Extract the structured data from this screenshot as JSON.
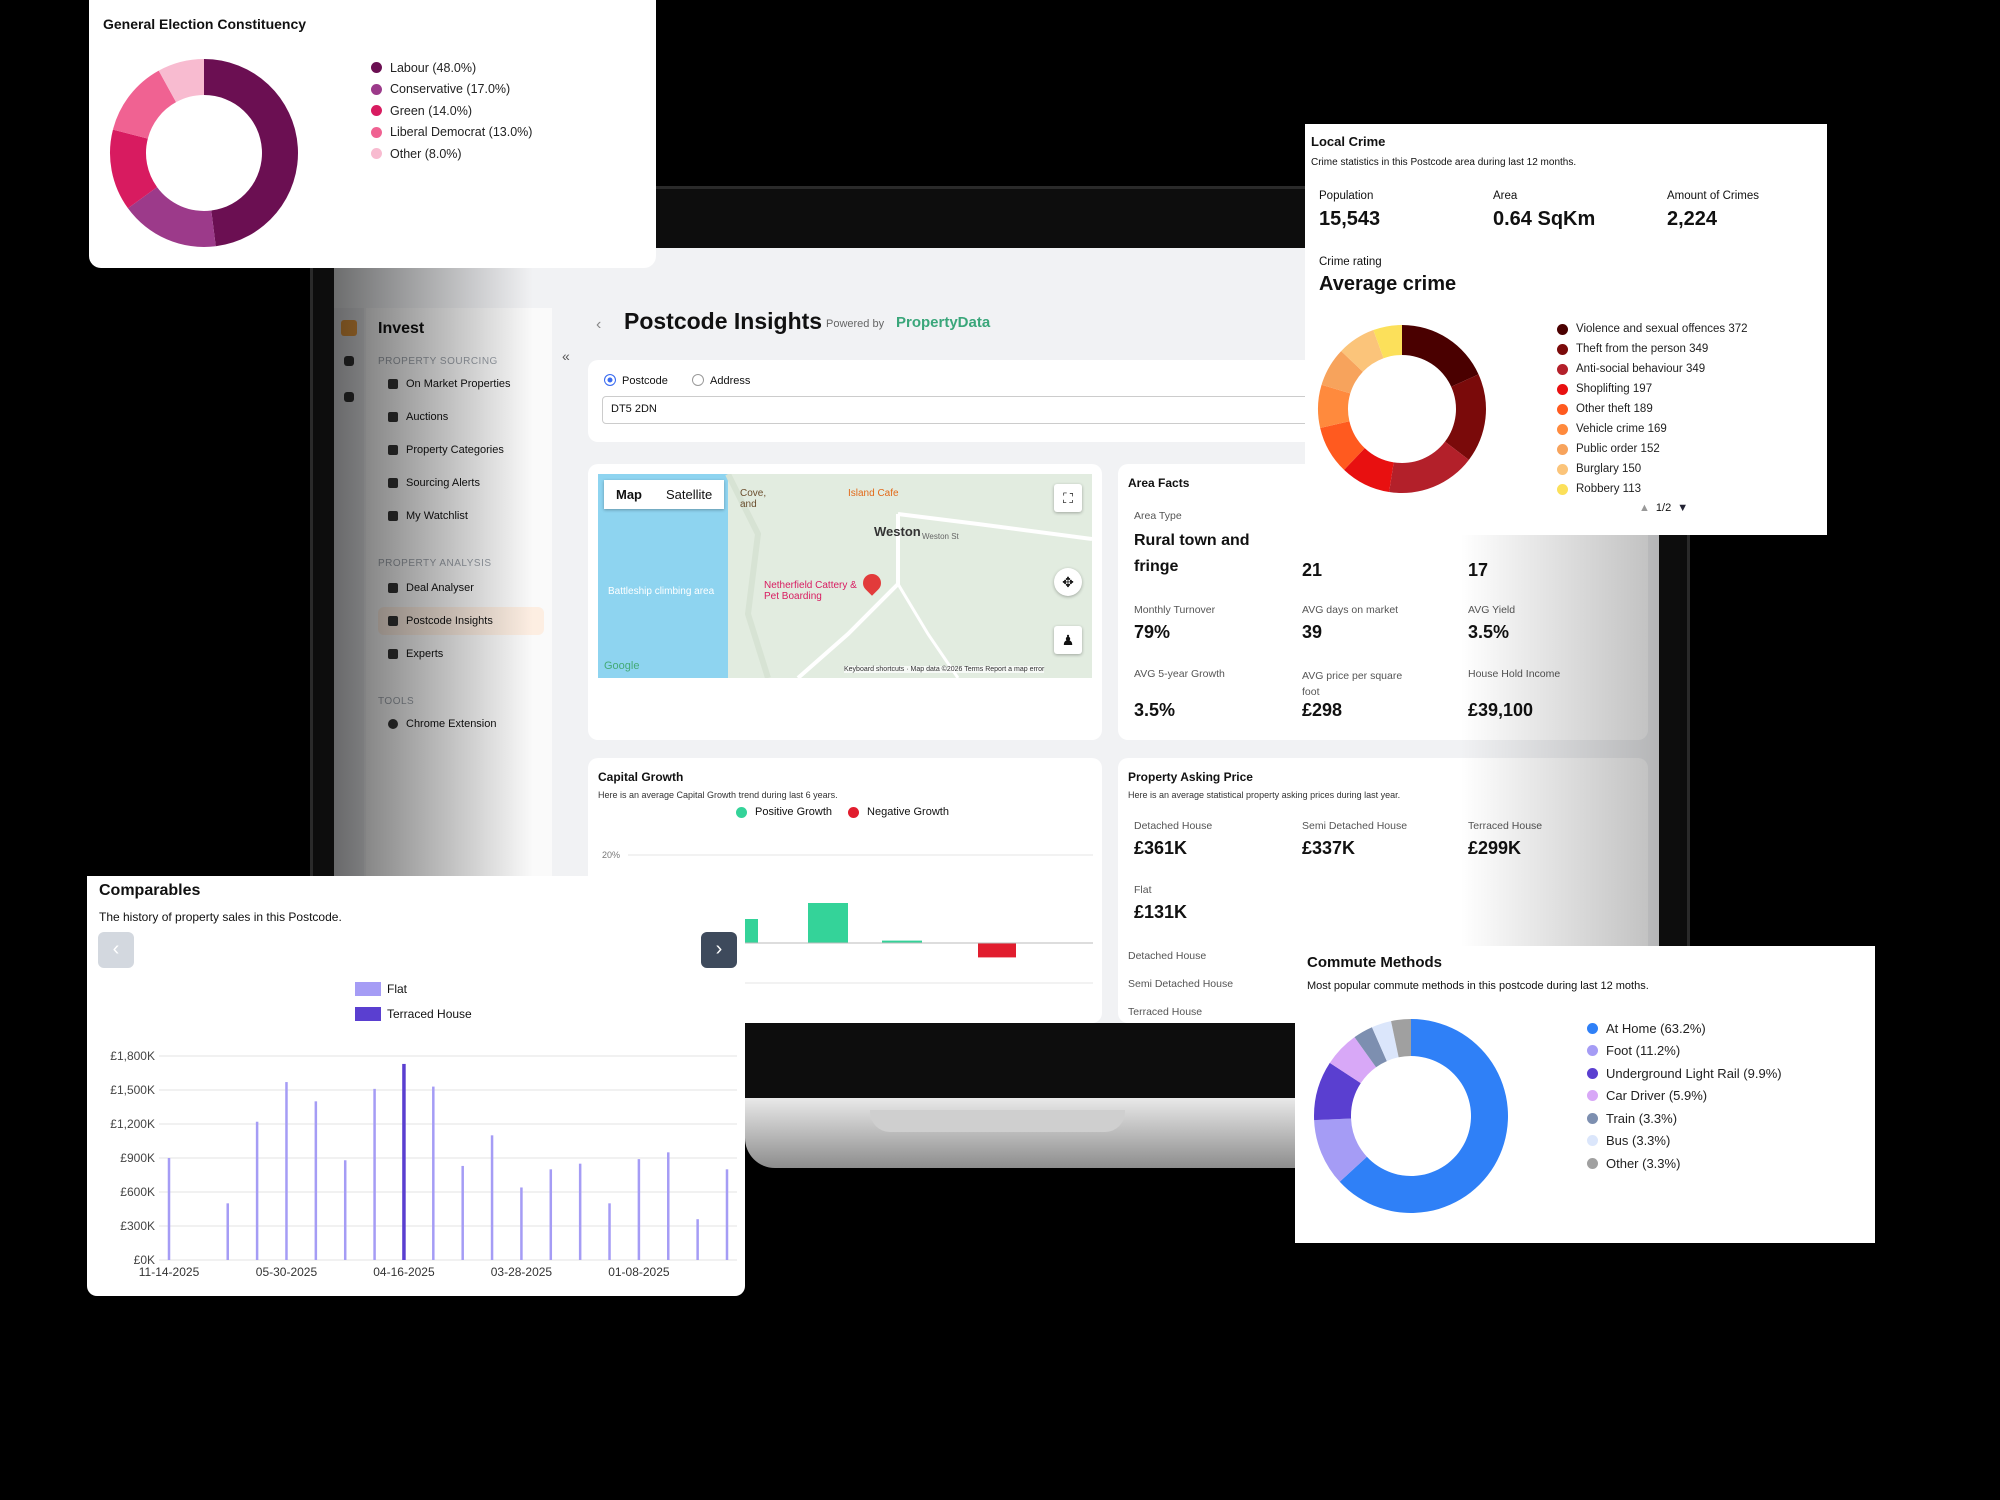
{
  "app": {
    "page_title": "Postcode Insights",
    "powered_by": "Powered by",
    "brand": "PropertyData",
    "sidebar_title": "Invest",
    "sections": {
      "sourcing": "PROPERTY SOURCING",
      "analysis": "PROPERTY ANALYSIS",
      "tools": "TOOLS"
    },
    "sourcing_items": [
      "On Market Properties",
      "Auctions",
      "Property Categories",
      "Sourcing Alerts",
      "My Watchlist"
    ],
    "analysis_items": [
      "Deal Analyser",
      "Postcode Insights",
      "Experts"
    ],
    "tools_items": [
      "Chrome Extension"
    ],
    "search": {
      "option_postcode": "Postcode",
      "option_address": "Address",
      "value": "DT5 2DN"
    },
    "map": {
      "tab_map": "Map",
      "tab_satellite": "Satellite",
      "labels": {
        "island_cafe": "Island Cafe",
        "weston": "Weston",
        "weston_st": "Weston St",
        "battleship": "Battleship climbing area",
        "cattery": "Netherfield Cattery & Pet Boarding",
        "cove": "Cove, and",
        "google": "Google",
        "footer": "Keyboard shortcuts · Map data ©2026   Terms   Report a map error"
      }
    },
    "area_facts": {
      "title": "Area Facts",
      "area_type_label": "Area Type",
      "area_type_value": "Rural town and fringe",
      "mid_value_1": "21",
      "mid_value_2": "17",
      "monthly_turnover_label": "Monthly Turnover",
      "monthly_turnover_value": "79%",
      "avg_days_label": "AVG days on market",
      "avg_days_value": "39",
      "avg_yield_label": "AVG Yield",
      "avg_yield_value": "3.5%",
      "growth_label": "AVG 5-year Growth",
      "growth_value": "3.5%",
      "price_sqft_label": "AVG price per square foot",
      "price_sqft_value": "£298",
      "income_label": "House Hold Income",
      "income_value": "£39,100"
    },
    "capital_growth": {
      "title": "Capital Growth",
      "subtitle": "Here is an average Capital Growth trend during last 6 years.",
      "legend_positive": "Positive Growth",
      "legend_negative": "Negative Growth",
      "tick_20": "20%",
      "positive_color": "#34d399",
      "negative_color": "#e11d2e"
    },
    "asking_price": {
      "title": "Property Asking Price",
      "subtitle": "Here is an average statistical property asking prices during last year.",
      "detached_label": "Detached House",
      "detached_value": "£361K",
      "semi_label": "Semi Detached House",
      "semi_value": "£337K",
      "terraced_label": "Terraced House",
      "terraced_value": "£299K",
      "flat_label": "Flat",
      "flat_value": "£131K",
      "list": [
        "Detached House",
        "Semi Detached House",
        "Terraced House"
      ]
    }
  },
  "election": {
    "title": "General Election Constituency",
    "items": [
      {
        "label": "Labour (48.0%)",
        "value": 48.0,
        "color": "#6b0f52"
      },
      {
        "label": "Conservative (17.0%)",
        "value": 17.0,
        "color": "#9c3a8a"
      },
      {
        "label": "Green (14.0%)",
        "value": 14.0,
        "color": "#d81b60"
      },
      {
        "label": "Liberal Democrat (13.0%)",
        "value": 13.0,
        "color": "#f06292"
      },
      {
        "label": "Other (8.0%)",
        "value": 8.0,
        "color": "#f8bbd0"
      }
    ]
  },
  "crime": {
    "title": "Local Crime",
    "subtitle": "Crime statistics in this Postcode area during last 12 months.",
    "population_label": "Population",
    "population_value": "15,543",
    "area_label": "Area",
    "area_value": "0.64 SqKm",
    "amount_label": "Amount of Crimes",
    "amount_value": "2,224",
    "rating_label": "Crime rating",
    "rating_value": "Average crime",
    "pager": "1/2",
    "items": [
      {
        "label": "Violence and sexual offences 372",
        "value": 372,
        "color": "#4a0000"
      },
      {
        "label": "Theft from the person 349",
        "value": 349,
        "color": "#7a0a0a"
      },
      {
        "label": "Anti-social behaviour 349",
        "value": 349,
        "color": "#b3202a"
      },
      {
        "label": "Shoplifting 197",
        "value": 197,
        "color": "#e81010"
      },
      {
        "label": "Other theft 189",
        "value": 189,
        "color": "#ff5a1f"
      },
      {
        "label": "Vehicle crime 169",
        "value": 169,
        "color": "#ff8a3d"
      },
      {
        "label": "Public order 152",
        "value": 152,
        "color": "#f7a35c"
      },
      {
        "label": "Burglary 150",
        "value": 150,
        "color": "#fbc47a"
      },
      {
        "label": "Robbery 113",
        "value": 113,
        "color": "#fce05a"
      }
    ]
  },
  "commute": {
    "title": "Commute Methods",
    "subtitle": "Most popular commute methods in this postcode during last 12 moths.",
    "items": [
      {
        "label": "At Home (63.2%)",
        "value": 63.2,
        "color": "#2f80f7"
      },
      {
        "label": "Foot (11.2%)",
        "value": 11.2,
        "color": "#a59cf5"
      },
      {
        "label": "Underground Light Rail (9.9%)",
        "value": 9.9,
        "color": "#5a3fd0"
      },
      {
        "label": "Car Driver (5.9%)",
        "value": 5.9,
        "color": "#d8a8f7"
      },
      {
        "label": "Train (3.3%)",
        "value": 3.3,
        "color": "#7d8fb0"
      },
      {
        "label": "Bus (3.3%)",
        "value": 3.3,
        "color": "#dbe6fb"
      },
      {
        "label": "Other (3.3%)",
        "value": 3.3,
        "color": "#a0a0a0"
      }
    ]
  },
  "comparables": {
    "title": "Comparables",
    "subtitle": "The history of property sales in this Postcode.",
    "legend_flat": "Flat",
    "legend_terraced": "Terraced House",
    "flat_color": "#a59cf5",
    "terraced_color": "#5a3fd0"
  },
  "chart_data": [
    {
      "type": "bar",
      "title": "Comparables",
      "ylabel": "",
      "xlabel": "",
      "ylim": [
        0,
        1800000
      ],
      "yticks": [
        "£0K",
        "£300K",
        "£600K",
        "£900K",
        "£1,200K",
        "£1,500K",
        "£1,800K"
      ],
      "xticks": [
        "11-14-2025",
        "05-30-2025",
        "04-16-2025",
        "03-28-2025",
        "01-08-2025"
      ],
      "series": [
        {
          "name": "Flat",
          "values": [
            900000,
            0,
            500000,
            1220000,
            1570000,
            1400000,
            880000,
            1510000,
            0,
            1530000,
            830000,
            1100000,
            640000,
            800000,
            850000,
            500000,
            890000,
            950000,
            360000,
            800000
          ]
        },
        {
          "name": "Terraced House",
          "values": [
            0,
            0,
            0,
            0,
            0,
            0,
            0,
            0,
            1730000,
            0,
            0,
            0,
            0,
            0,
            0,
            0,
            0,
            0,
            0,
            0
          ]
        }
      ]
    },
    {
      "type": "bar",
      "title": "Capital Growth",
      "ylim": [
        -5,
        20
      ],
      "series": [
        {
          "name": "Positive Growth",
          "values": [
            3,
            5,
            0.3
          ]
        },
        {
          "name": "Negative Growth",
          "values": [
            -1.8
          ]
        }
      ]
    }
  ]
}
